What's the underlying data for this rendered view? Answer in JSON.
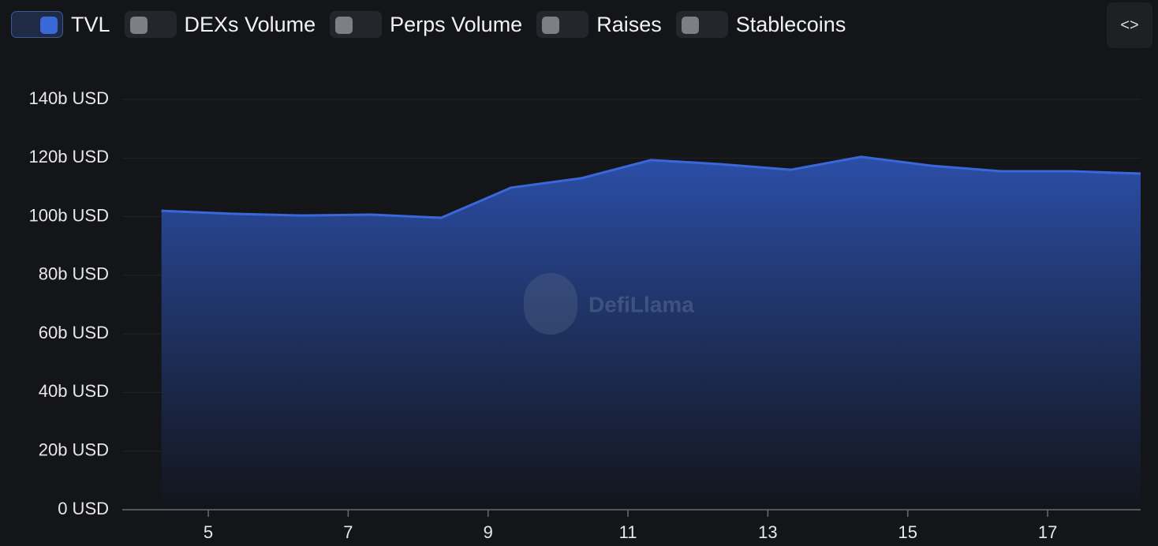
{
  "toggles": [
    {
      "label": "TVL",
      "on": true
    },
    {
      "label": "DEXs Volume",
      "on": false
    },
    {
      "label": "Perps Volume",
      "on": false
    },
    {
      "label": "Raises",
      "on": false
    },
    {
      "label": "Stablecoins",
      "on": false
    }
  ],
  "watermark": "DefiLlama",
  "chart_data": {
    "type": "area",
    "x": [
      4.33,
      5.33,
      6.33,
      7.33,
      8.33,
      9.33,
      10.33,
      11.33,
      12.33,
      13.33,
      14.33,
      15.33,
      16.33,
      17.33,
      18.33
    ],
    "series": [
      {
        "name": "TVL",
        "color": "#3a68d8",
        "values": [
          102.0,
          101.0,
          100.4,
          100.7,
          99.6,
          109.9,
          113.1,
          119.3,
          117.9,
          116.0,
          120.4,
          117.4,
          115.5,
          115.5,
          114.7
        ]
      }
    ],
    "xlim": [
      3.77,
      18.33
    ],
    "xticks": [
      5,
      7,
      9,
      11,
      13,
      15,
      17
    ],
    "ylim": [
      0,
      140
    ],
    "yticks": [
      {
        "value": 0,
        "label": "0 USD"
      },
      {
        "value": 20,
        "label": "20b USD"
      },
      {
        "value": 40,
        "label": "40b USD"
      },
      {
        "value": 60,
        "label": "60b USD"
      },
      {
        "value": 80,
        "label": "80b USD"
      },
      {
        "value": 100,
        "label": "100b USD"
      },
      {
        "value": 120,
        "label": "120b USD"
      },
      {
        "value": 140,
        "label": "140b USD"
      }
    ],
    "grid": true
  }
}
